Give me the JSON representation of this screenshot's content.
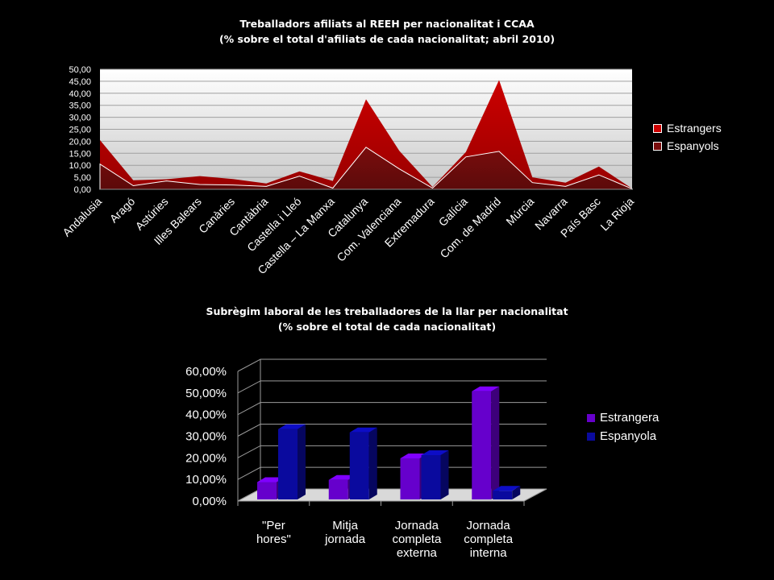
{
  "chart_data": [
    {
      "type": "area",
      "title": "Treballadors afiliats al REEH per nacionalitat i CCAA",
      "subtitle": "(% sobre el total d'afiliats de cada nacionalitat; abril 2010)",
      "categories": [
        "Andalusia",
        "Aragó",
        "Astúries",
        "Illes Balears",
        "Canàries",
        "Cantàbria",
        "Castella i Lleó",
        "Castella – La Manxa",
        "Catalunya",
        "Com. Valenciana",
        "Extremadura",
        "Galícia",
        "Com. de Madrid",
        "Múrcia",
        "Navarra",
        "País Basc",
        "La Rioja"
      ],
      "series": [
        {
          "name": "Estrangers",
          "color": "#cc0000",
          "values": [
            20.5,
            3.8,
            4.2,
            5.5,
            4.3,
            2.4,
            7.5,
            3.5,
            37.5,
            16.0,
            0.9,
            15.5,
            45.5,
            5.0,
            2.8,
            9.5,
            0.3
          ]
        },
        {
          "name": "Espanyols",
          "color": "#7a0d0d",
          "values": [
            10.5,
            1.5,
            3.5,
            2.0,
            1.8,
            1.2,
            5.5,
            0.5,
            17.5,
            8.5,
            0.5,
            13.5,
            15.8,
            2.8,
            1.2,
            6.0,
            0.2
          ]
        }
      ],
      "yticks": [
        "0,00",
        "5,00",
        "10,00",
        "15,00",
        "20,00",
        "25,00",
        "30,00",
        "35,00",
        "40,00",
        "45,00",
        "50,00"
      ],
      "ylim": [
        0,
        50
      ],
      "stacked": false,
      "legend_position": "right"
    },
    {
      "type": "bar",
      "title": "Subrègim laboral de les treballadores de la llar per nacionalitat",
      "subtitle": "(% sobre el total de cada nacionalitat)",
      "categories": [
        [
          "\"Per",
          "hores\""
        ],
        [
          "Mitja",
          "jornada"
        ],
        [
          "Jornada",
          "completa",
          "externa"
        ],
        [
          "Jornada",
          "completa",
          "interna"
        ]
      ],
      "series": [
        {
          "name": "Estrangera",
          "color": "#6600cc",
          "values": [
            11.0,
            12.0,
            22.0,
            53.0
          ]
        },
        {
          "name": "Espanyola",
          "color": "#0a0a9e",
          "values": [
            35.5,
            34.0,
            23.5,
            7.0
          ]
        }
      ],
      "yticks": [
        "0,00%",
        "10,00%",
        "20,00%",
        "30,00%",
        "40,00%",
        "50,00%",
        "60,00%"
      ],
      "ylim": [
        0,
        60
      ],
      "legend_position": "right",
      "grid": true
    }
  ]
}
